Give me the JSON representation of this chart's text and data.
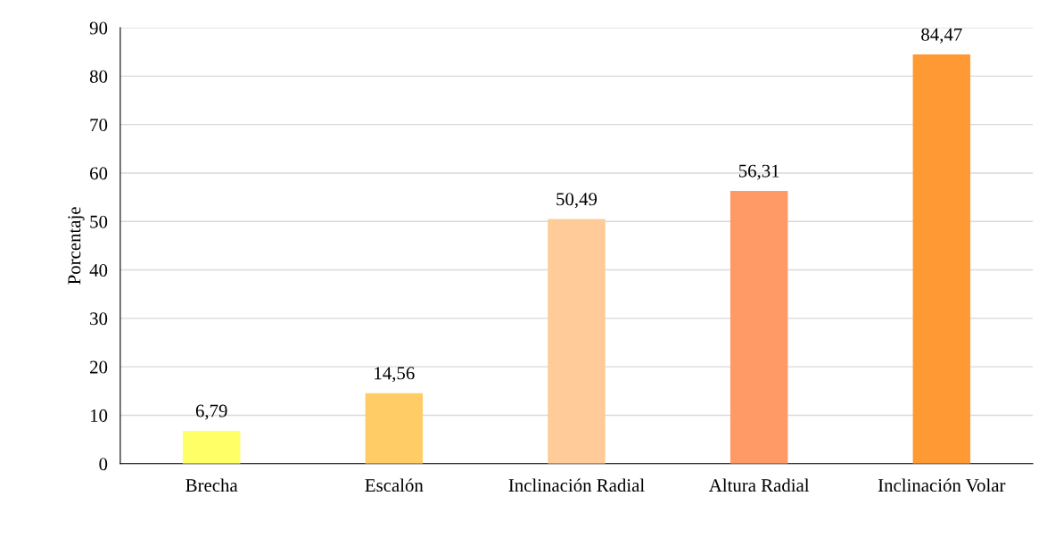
{
  "chart_data": {
    "type": "bar",
    "ylabel": "Porcentaje",
    "categories": [
      "Brecha",
      "Escalón",
      "Inclinación Radial",
      "Altura Radial",
      "Inclinación Volar"
    ],
    "values": [
      6.79,
      14.56,
      50.49,
      56.31,
      84.47
    ],
    "colors": [
      "#ffff66",
      "#ffcc66",
      "#ffcc99",
      "#ff9966",
      "#ff9933"
    ],
    "value_labels": [
      "6,79",
      "14,56",
      "50,49",
      "56,31",
      "84,47"
    ],
    "ylim": [
      0,
      90
    ],
    "yticks": [
      0,
      10,
      20,
      30,
      40,
      50,
      60,
      70,
      80,
      90
    ],
    "grid": "y",
    "legend": false
  }
}
